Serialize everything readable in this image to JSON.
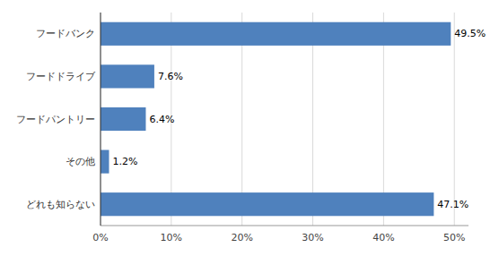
{
  "chart_data": {
    "type": "bar",
    "orientation": "horizontal",
    "categories": [
      "どれも知らない",
      "その他",
      "フードパントリー",
      "フードドライブ",
      "フードバンク"
    ],
    "values": [
      47.1,
      1.2,
      6.4,
      7.6,
      49.5
    ],
    "value_labels": [
      "47.1%",
      "1.2%",
      "6.4%",
      "7.6%",
      "49.5%"
    ],
    "data_labels": true,
    "color": "#4f81bd",
    "xlim": [
      0,
      52
    ],
    "xticks": [
      {
        "value": 0,
        "label": "0%"
      },
      {
        "value": 10,
        "label": "10%"
      },
      {
        "value": 20,
        "label": "20%"
      },
      {
        "value": 30,
        "label": "30%"
      },
      {
        "value": 40,
        "label": "40%"
      },
      {
        "value": 50,
        "label": "50%"
      }
    ],
    "grid": true
  }
}
